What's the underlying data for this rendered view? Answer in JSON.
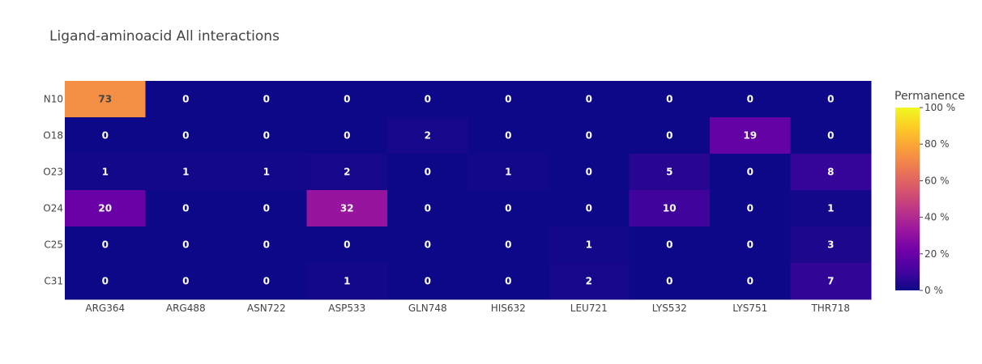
{
  "chart_data": {
    "type": "heatmap",
    "title": "Ligand-aminoacid All interactions",
    "x_categories": [
      "ARG364",
      "ARG488",
      "ASN722",
      "ASP533",
      "GLN748",
      "HIS632",
      "LEU721",
      "LYS532",
      "LYS751",
      "THR718"
    ],
    "y_categories": [
      "N10",
      "O18",
      "O23",
      "O24",
      "C25",
      "C31"
    ],
    "values": [
      [
        73,
        0,
        0,
        0,
        0,
        0,
        0,
        0,
        0,
        0
      ],
      [
        0,
        0,
        0,
        0,
        2,
        0,
        0,
        0,
        19,
        0
      ],
      [
        1,
        1,
        1,
        2,
        0,
        1,
        0,
        5,
        0,
        8
      ],
      [
        20,
        0,
        0,
        32,
        0,
        0,
        0,
        10,
        0,
        1
      ],
      [
        0,
        0,
        0,
        0,
        0,
        0,
        1,
        0,
        0,
        3
      ],
      [
        0,
        0,
        0,
        1,
        0,
        0,
        2,
        0,
        0,
        7
      ]
    ],
    "colorbar": {
      "title": "Permanence",
      "range": [
        0,
        100
      ],
      "ticks": [
        "0 %",
        "20 %",
        "40 %",
        "60 %",
        "80 %",
        "100 %"
      ],
      "tick_values": [
        0,
        20,
        40,
        60,
        80,
        100
      ]
    },
    "colorscale": [
      "#0d0887",
      "#46039f",
      "#7201a8",
      "#9c179e",
      "#bd3786",
      "#d8576b",
      "#ed7953",
      "#fb9f3a",
      "#fdca26",
      "#f0f921"
    ]
  }
}
